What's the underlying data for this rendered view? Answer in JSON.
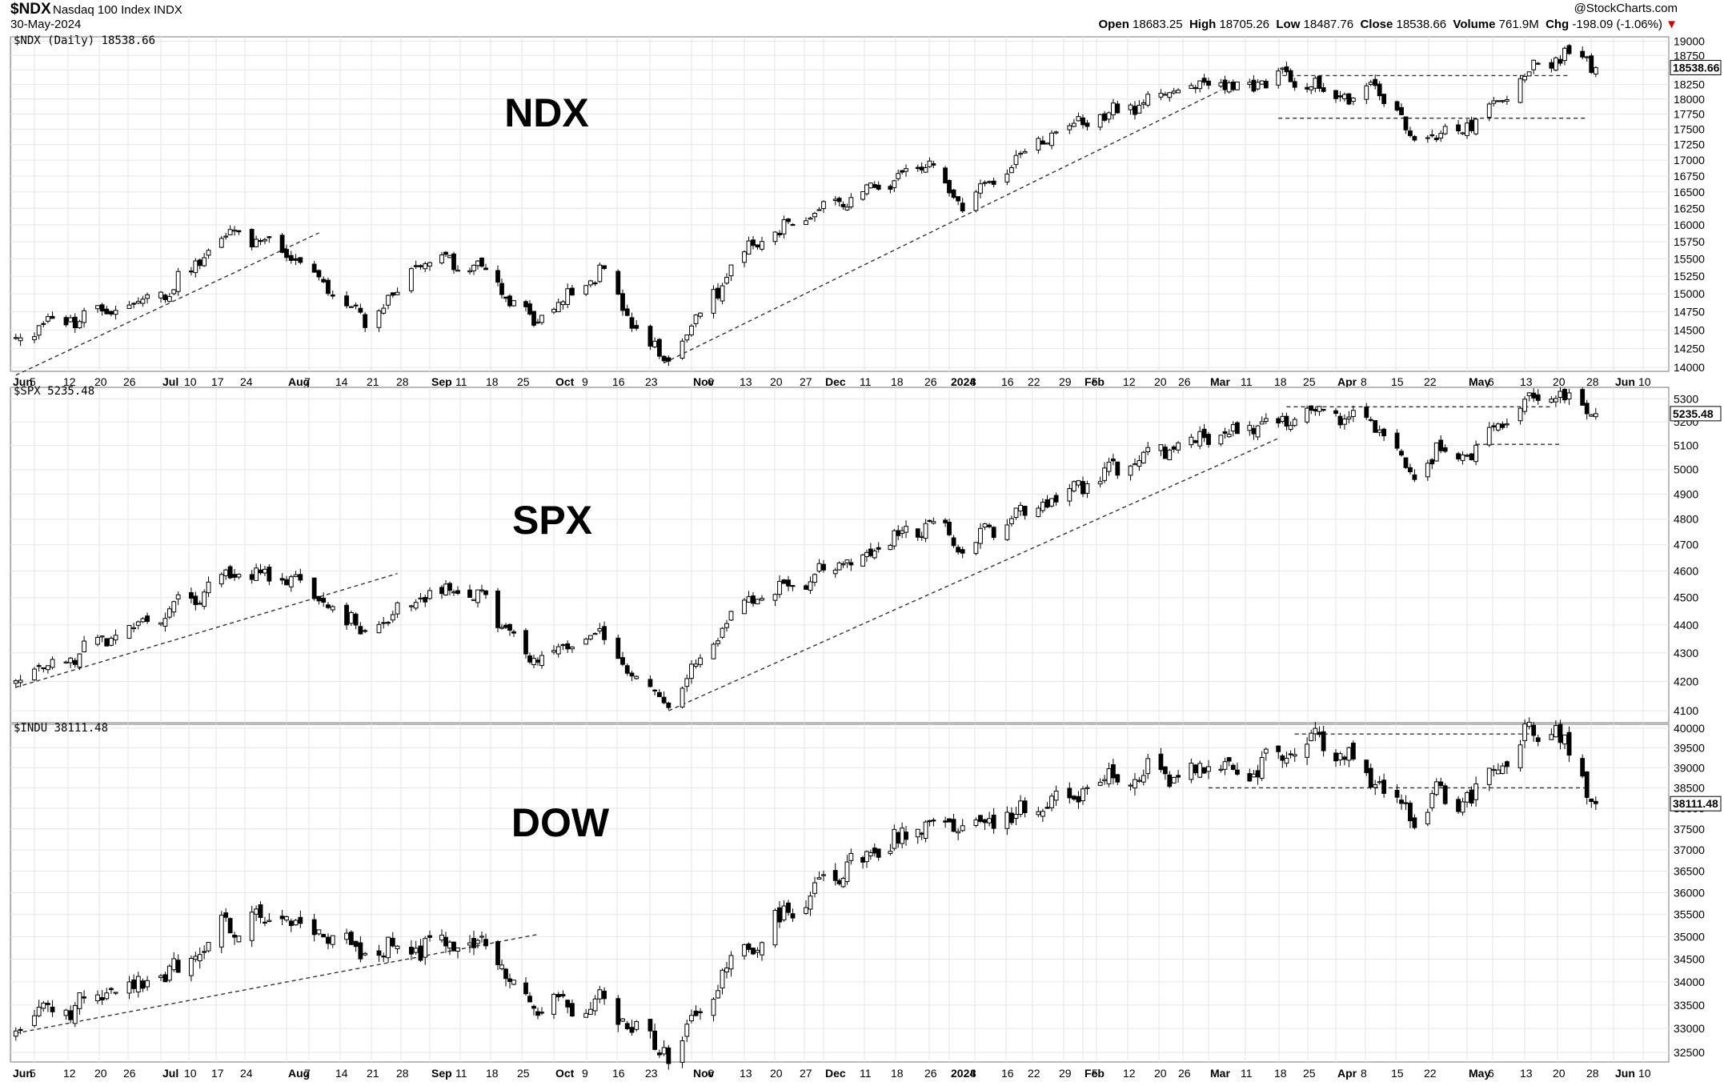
{
  "header": {
    "symbol": "$NDX",
    "index_name": "Nasdaq 100 Index",
    "exchange": "INDX",
    "date": "30-May-2024",
    "watermark": "@StockCharts.com",
    "open_label": "Open",
    "open": "18683.25",
    "high_label": "High",
    "high": "18705.26",
    "low_label": "Low",
    "low": "18487.76",
    "close_label": "Close",
    "close": "18538.66",
    "volume_label": "Volume",
    "volume": "761.9M",
    "chg_label": "Chg",
    "chg": "-198.09 (-1.06%)",
    "chg_arrow": "▼",
    "down_color": "#cc0000"
  },
  "x_axis": {
    "ticks": [
      "Jun",
      "5",
      "12",
      "20",
      "26",
      "Jul",
      "10",
      "17",
      "24",
      "Aug",
      "7",
      "14",
      "21",
      "28",
      "Sep",
      "11",
      "18",
      "25",
      "Oct",
      "9",
      "16",
      "23",
      "Nov",
      "6",
      "13",
      "20",
      "27",
      "Dec",
      "11",
      "18",
      "26",
      "2024",
      "8",
      "16",
      "22",
      "29",
      "Feb",
      "5",
      "12",
      "20",
      "26",
      "Mar",
      "11",
      "18",
      "25",
      "Apr",
      "8",
      "15",
      "22",
      "May",
      "6",
      "13",
      "20",
      "28",
      "Jun",
      "10"
    ],
    "bold": [
      "Jun",
      "Jul",
      "Aug",
      "Sep",
      "Oct",
      "Nov",
      "Dec",
      "2024",
      "Feb",
      "Mar",
      "Apr",
      "May"
    ]
  },
  "chart_data": [
    {
      "type": "candlestick",
      "label": "NDX",
      "title": "$NDX (Daily) 18538.66",
      "last_value": "18538.66",
      "y_ticks": [
        "19000",
        "18750",
        "18500",
        "18250",
        "18000",
        "17750",
        "17500",
        "17250",
        "17000",
        "16750",
        "16500",
        "16250",
        "16000",
        "15750",
        "15500",
        "15250",
        "15000",
        "14750",
        "14500",
        "14250",
        "14000"
      ],
      "ylim": [
        13950,
        19080
      ],
      "log_scale": true,
      "grid": true,
      "x": [
        "2023-06-01",
        "2023-07-05",
        "2023-07-19",
        "2023-08-01",
        "2023-08-18",
        "2023-09-01",
        "2023-09-14",
        "2023-09-27",
        "2023-10-12",
        "2023-10-26",
        "2023-11-14",
        "2023-12-01",
        "2023-12-28",
        "2024-01-05",
        "2024-01-24",
        "2024-02-08",
        "2024-03-01",
        "2024-03-08",
        "2024-03-21",
        "2024-04-04",
        "2024-04-11",
        "2024-04-19",
        "2024-04-24",
        "2024-05-02",
        "2024-05-15",
        "2024-05-24",
        "2024-05-30"
      ],
      "close": [
        14430,
        15050,
        15900,
        15650,
        14600,
        15500,
        15350,
        14600,
        15300,
        14050,
        15700,
        16200,
        16900,
        16300,
        17400,
        17800,
        18300,
        18200,
        18390,
        18000,
        18200,
        17250,
        17400,
        17600,
        18500,
        18800,
        18538.66
      ],
      "series_stats": {
        "n_bars": 253
      },
      "trendlines": [
        {
          "from": [
            "2023-06-01",
            13900
          ],
          "to": [
            "2023-08-08",
            15880
          ]
        },
        {
          "from": [
            "2023-10-26",
            14060
          ],
          "to": [
            "2024-03-04",
            18150
          ]
        }
      ],
      "levels": [
        {
          "value": 18400,
          "from": "2024-03-19",
          "to": "2024-05-24"
        },
        {
          "value": 17680,
          "from": "2024-03-18",
          "to": "2024-05-28"
        }
      ]
    },
    {
      "type": "candlestick",
      "label": "SPX",
      "title": "$SPX 5235.48",
      "last_value": "5235.48",
      "y_ticks": [
        "5300",
        "5200",
        "5100",
        "5000",
        "4900",
        "4800",
        "4700",
        "4600",
        "4500",
        "4400",
        "4300",
        "4200",
        "4100"
      ],
      "ylim": [
        4060,
        5350
      ],
      "log_scale": true,
      "grid": true,
      "x": [
        "2023-06-01",
        "2023-07-05",
        "2023-07-19",
        "2023-08-01",
        "2023-08-18",
        "2023-09-01",
        "2023-09-14",
        "2023-09-27",
        "2023-10-12",
        "2023-10-27",
        "2023-11-14",
        "2023-12-01",
        "2023-12-28",
        "2024-01-05",
        "2024-01-24",
        "2024-02-08",
        "2024-03-01",
        "2024-03-08",
        "2024-03-28",
        "2024-04-11",
        "2024-04-19",
        "2024-04-24",
        "2024-05-02",
        "2024-05-15",
        "2024-05-21",
        "2024-05-30"
      ],
      "close": [
        4200,
        4450,
        4580,
        4580,
        4370,
        4520,
        4500,
        4270,
        4370,
        4120,
        4500,
        4590,
        4790,
        4700,
        4870,
        5000,
        5140,
        5160,
        5250,
        5180,
        4970,
        5070,
        5060,
        5300,
        5320,
        5235.48
      ],
      "trendlines": [
        {
          "from": [
            "2023-06-01",
            4180
          ],
          "to": [
            "2023-08-25",
            4590
          ]
        },
        {
          "from": [
            "2023-10-27",
            4100
          ],
          "to": [
            "2024-03-18",
            5130
          ]
        }
      ],
      "levels": [
        {
          "value": 5265,
          "from": "2024-03-20",
          "to": "2024-05-20"
        },
        {
          "value": 5105,
          "from": "2024-05-03",
          "to": "2024-05-22"
        }
      ]
    },
    {
      "type": "candlestick",
      "label": "DOW",
      "title": "$INDU 38111.48",
      "last_value": "38111.48",
      "y_ticks": [
        "40000",
        "39500",
        "39000",
        "38500",
        "38000",
        "37500",
        "37000",
        "36500",
        "36000",
        "35500",
        "35000",
        "34500",
        "34000",
        "33500",
        "33000",
        "32500"
      ],
      "ylim": [
        32300,
        40100
      ],
      "log_scale": true,
      "grid": true,
      "x": [
        "2023-06-01",
        "2023-07-05",
        "2023-07-19",
        "2023-08-01",
        "2023-08-18",
        "2023-09-01",
        "2023-09-14",
        "2023-09-27",
        "2023-10-12",
        "2023-10-27",
        "2023-11-14",
        "2023-12-01",
        "2023-12-28",
        "2024-01-05",
        "2024-01-24",
        "2024-02-08",
        "2024-03-01",
        "2024-03-08",
        "2024-03-28",
        "2024-04-11",
        "2024-04-19",
        "2024-04-24",
        "2024-05-02",
        "2024-05-15",
        "2024-05-21",
        "2024-05-30"
      ],
      "close": [
        33000,
        34200,
        35300,
        35400,
        34600,
        34800,
        34800,
        33500,
        33600,
        32500,
        34800,
        36200,
        37700,
        37500,
        38000,
        38800,
        39000,
        38800,
        39800,
        38500,
        37800,
        38300,
        38200,
        39900,
        39900,
        38111.48
      ],
      "trendlines": [
        {
          "from": [
            "2023-06-01",
            32900
          ],
          "to": [
            "2023-09-28",
            35050
          ]
        }
      ],
      "levels": [
        {
          "value": 39850,
          "from": "2024-03-22",
          "to": "2024-05-16"
        },
        {
          "value": 38500,
          "from": "2024-03-01",
          "to": "2024-05-28"
        }
      ]
    }
  ],
  "labels": {
    "ndx": "NDX",
    "spx": "SPX",
    "dow": "DOW"
  }
}
